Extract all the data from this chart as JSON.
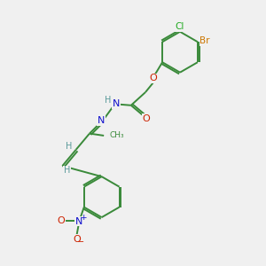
{
  "background_color": "#f0f0f0",
  "atom_colors": {
    "C": "#3a8a3a",
    "H": "#5a9a9a",
    "N": "#1010cc",
    "O": "#cc2200",
    "Cl": "#22aa22",
    "Br": "#cc7700"
  },
  "bond_color": "#3a8a3a",
  "figsize": [
    3.0,
    3.0
  ],
  "dpi": 100
}
